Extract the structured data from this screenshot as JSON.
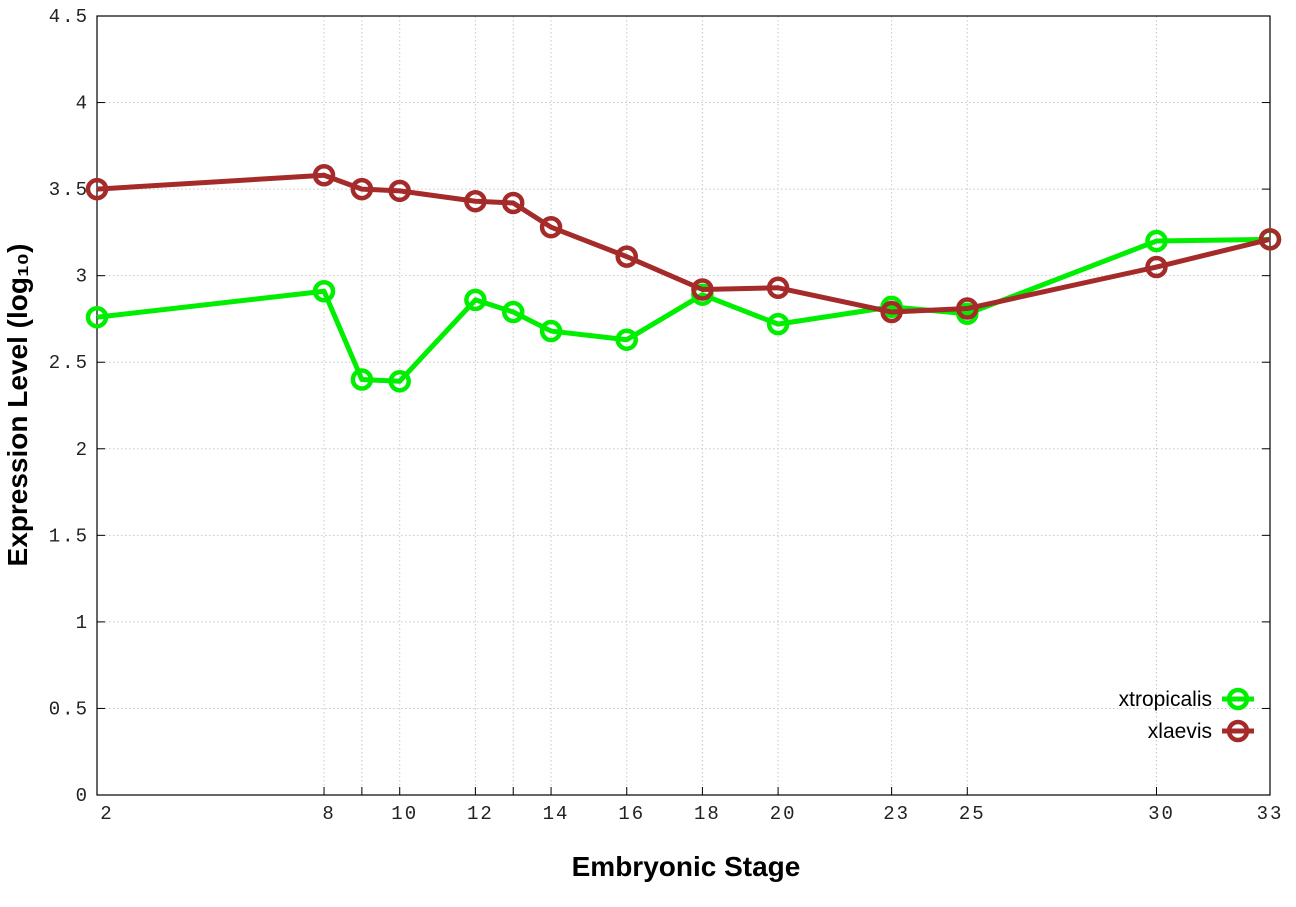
{
  "chart_data": {
    "type": "line",
    "title": "",
    "xlabel": "Embryonic Stage",
    "ylabel": "Expression Level (log₁₀)",
    "x": [
      2,
      8,
      9,
      10,
      12,
      13,
      14,
      16,
      18,
      20,
      23,
      25,
      30,
      33
    ],
    "xticks": [
      "2",
      "8",
      "10",
      "12",
      "14",
      "16",
      "18",
      "20",
      "23",
      "25",
      "30",
      "33"
    ],
    "xtick_values": [
      2,
      8,
      10,
      12,
      14,
      16,
      18,
      20,
      23,
      25,
      30,
      33
    ],
    "xgrid_values": [
      8,
      9,
      10,
      12,
      13,
      14,
      16,
      18,
      20,
      23,
      25,
      30
    ],
    "yticks": [
      "0",
      "0.5",
      "1",
      "1.5",
      "2",
      "2.5",
      "3",
      "3.5",
      "4",
      "4.5"
    ],
    "xlim": [
      2,
      33
    ],
    "ylim": [
      0,
      4.5
    ],
    "grid": true,
    "legend_position": "bottom-right",
    "markers": "open-circle",
    "series": [
      {
        "name": "xtropicalis",
        "color": "#00ee00",
        "values": [
          2.76,
          2.91,
          2.4,
          2.39,
          2.86,
          2.79,
          2.68,
          2.63,
          2.89,
          2.72,
          2.82,
          2.78,
          3.2,
          3.21
        ]
      },
      {
        "name": "xlaevis",
        "color": "#a52a2a",
        "values": [
          3.5,
          3.58,
          3.5,
          3.49,
          3.43,
          3.42,
          3.28,
          3.11,
          2.92,
          2.93,
          2.79,
          2.81,
          3.05,
          3.21
        ]
      }
    ]
  }
}
